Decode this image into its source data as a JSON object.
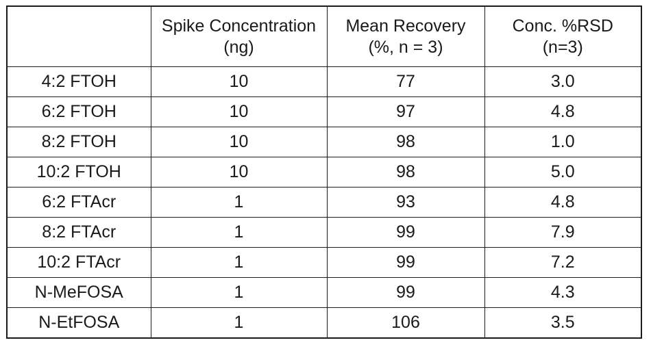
{
  "table": {
    "headers": [
      {
        "line1": "",
        "line2": ""
      },
      {
        "line1": "Spike Concentration",
        "line2": "(ng)"
      },
      {
        "line1": "Mean Recovery",
        "line2": "(%, n = 3)"
      },
      {
        "line1": "Conc. %RSD",
        "line2": "(n=3)"
      }
    ],
    "rows": [
      {
        "compound": "4:2 FTOH",
        "spike": "10",
        "recovery": "77",
        "rsd": "3.0"
      },
      {
        "compound": "6:2 FTOH",
        "spike": "10",
        "recovery": "97",
        "rsd": "4.8"
      },
      {
        "compound": "8:2 FTOH",
        "spike": "10",
        "recovery": "98",
        "rsd": "1.0"
      },
      {
        "compound": "10:2 FTOH",
        "spike": "10",
        "recovery": "98",
        "rsd": "5.0"
      },
      {
        "compound": "6:2 FTAcr",
        "spike": "1",
        "recovery": "93",
        "rsd": "4.8"
      },
      {
        "compound": "8:2 FTAcr",
        "spike": "1",
        "recovery": "99",
        "rsd": "7.9"
      },
      {
        "compound": "10:2 FTAcr",
        "spike": "1",
        "recovery": "99",
        "rsd": "7.2"
      },
      {
        "compound": "N-MeFOSA",
        "spike": "1",
        "recovery": "99",
        "rsd": "4.3"
      },
      {
        "compound": "N-EtFOSA",
        "spike": "1",
        "recovery": "106",
        "rsd": "3.5"
      }
    ]
  }
}
